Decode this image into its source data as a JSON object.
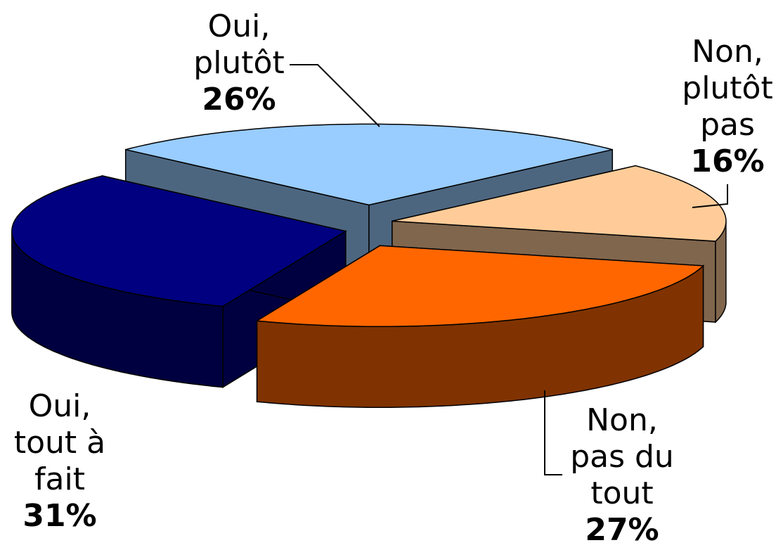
{
  "chart_data": {
    "type": "pie",
    "categories": [
      "Oui,\nplutôt",
      "Non,\nplutôt\npas",
      "Non,\npas du\ntout",
      "Oui,\ntout à\nfait"
    ],
    "values": [
      26,
      16,
      27,
      31
    ],
    "value_labels": [
      "26%",
      "16%",
      "27%",
      "31%"
    ],
    "colors": [
      "#99ccff",
      "#ffcc99",
      "#ff6600",
      "#000080"
    ]
  }
}
